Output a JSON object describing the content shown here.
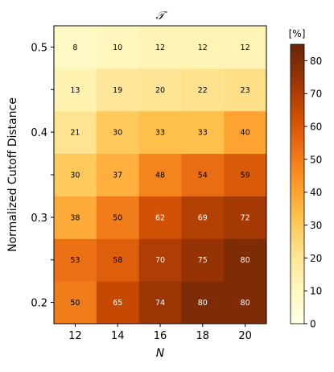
{
  "chart_data": {
    "type": "heatmap",
    "title": "𝒯",
    "xlabel": "N",
    "ylabel": "Normalized Cutoff Distance",
    "x": [
      12,
      14,
      16,
      18,
      20
    ],
    "x_tick_labels": [
      "12",
      "14",
      "16",
      "18",
      "20"
    ],
    "y": [
      0.2,
      0.25,
      0.3,
      0.35,
      0.4,
      0.45,
      0.5
    ],
    "y_tick_labels": [
      "0.2",
      "",
      "0.3",
      "",
      "0.4",
      "",
      "0.5"
    ],
    "values": [
      [
        50,
        65,
        74,
        80,
        80
      ],
      [
        53,
        58,
        70,
        75,
        80
      ],
      [
        38,
        50,
        62,
        69,
        72
      ],
      [
        30,
        37,
        48,
        54,
        59
      ],
      [
        21,
        30,
        33,
        33,
        40
      ],
      [
        13,
        19,
        20,
        22,
        23
      ],
      [
        8,
        10,
        12,
        12,
        12
      ]
    ],
    "colorbar": {
      "label": "[%]",
      "range": [
        0,
        85
      ],
      "ticks": [
        0,
        10,
        20,
        30,
        40,
        50,
        60,
        70,
        80
      ],
      "tick_labels": [
        "0",
        "10",
        "20",
        "30",
        "40",
        "50",
        "60",
        "70",
        "80"
      ],
      "colormap": "YlOrBr",
      "colormap_stops": [
        "#ffffe5",
        "#fff7bc",
        "#fee391",
        "#fec44f",
        "#fe9929",
        "#ec7014",
        "#cc4c02",
        "#993404",
        "#662506"
      ]
    }
  }
}
